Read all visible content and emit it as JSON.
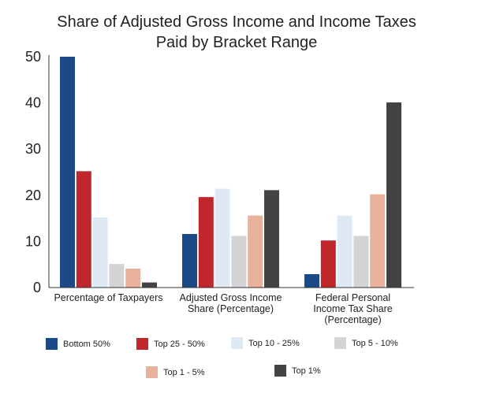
{
  "chart_data": {
    "type": "bar",
    "title": [
      "Share of Adjusted Gross Income and Income Taxes",
      "Paid by Bracket Range"
    ],
    "xlabel": "",
    "ylabel": "",
    "ylim": [
      0,
      50
    ],
    "yticks": [
      0,
      10,
      20,
      30,
      40,
      50
    ],
    "grid": false,
    "legend_position": "bottom",
    "categories": [
      [
        "Percentage of Taxpayers"
      ],
      [
        "Adjusted Gross Income",
        "Share (Percentage)"
      ],
      [
        "Federal Personal",
        "Income Tax Share",
        "(Percentage)"
      ]
    ],
    "series": [
      {
        "name": "Bottom 50%",
        "color": "#1c4a87",
        "values": [
          50,
          11.6,
          2.9
        ]
      },
      {
        "name": "Top 25 - 50%",
        "color": "#c0272d",
        "values": [
          25.2,
          19.6,
          10.2
        ]
      },
      {
        "name": "Top 10 - 25%",
        "color": "#dfe9f4",
        "values": [
          15.2,
          21.4,
          15.6
        ]
      },
      {
        "name": "Top 5 - 10%",
        "color": "#d4d4d6",
        "values": [
          5.1,
          11.2,
          11.2
        ]
      },
      {
        "name": "Top 1 - 5%",
        "color": "#e8b19c",
        "values": [
          4.1,
          15.6,
          20.2
        ]
      },
      {
        "name": "Top 1%",
        "color": "#434345",
        "values": [
          1.1,
          21.1,
          40.1
        ]
      }
    ]
  }
}
